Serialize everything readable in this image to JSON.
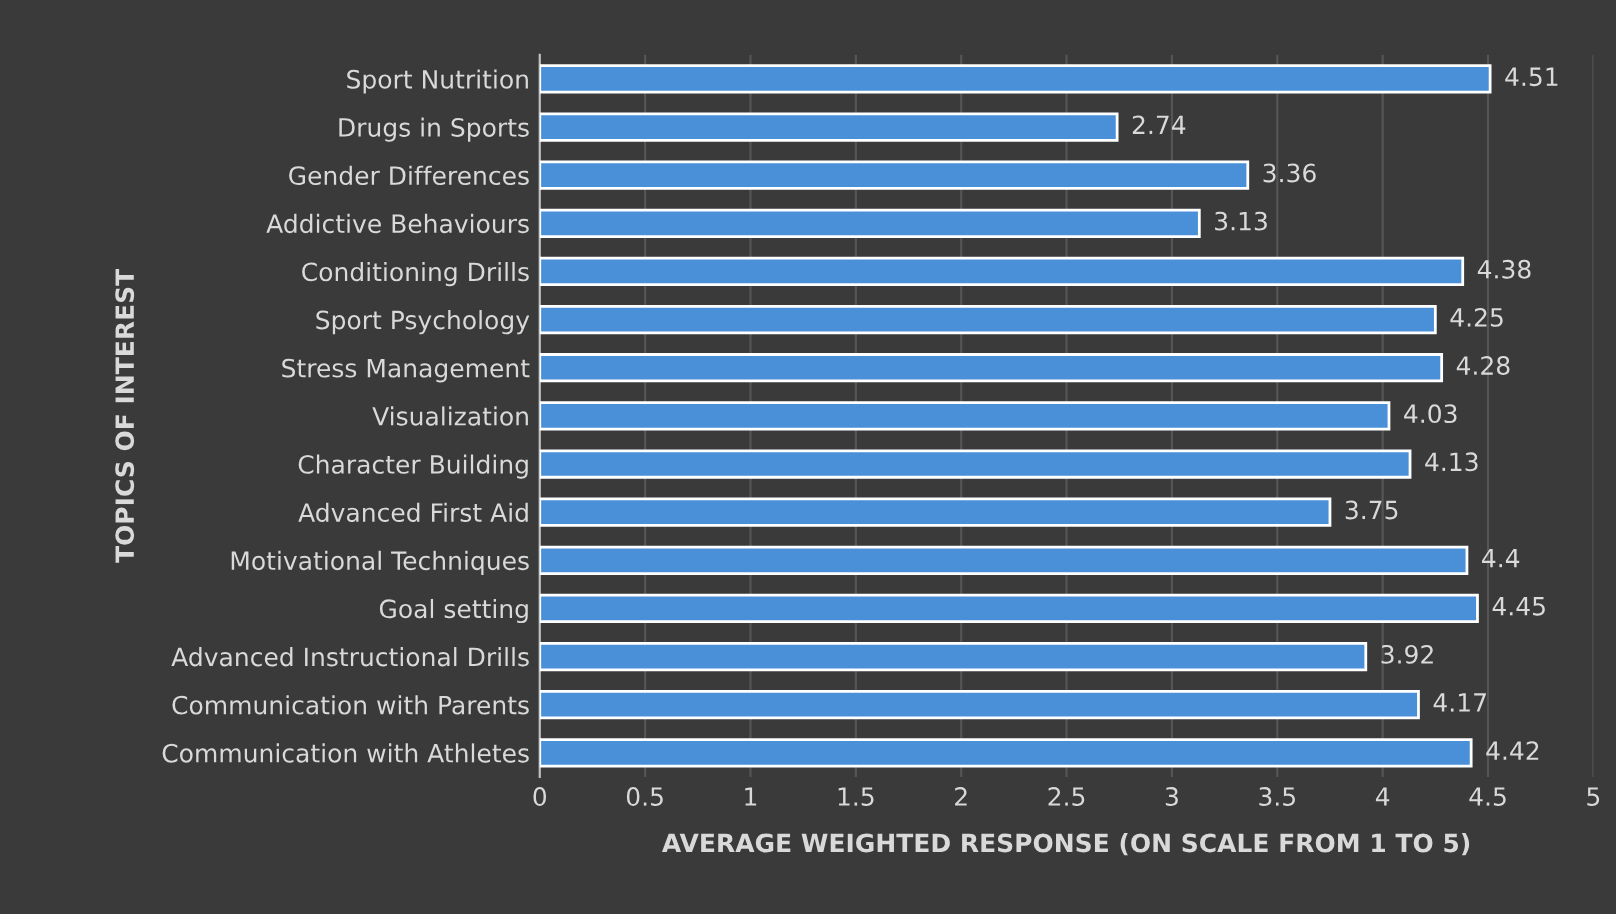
{
  "chart_data": {
    "type": "bar",
    "orientation": "horizontal",
    "xlabel": "AVERAGE WEIGHTED RESPONSE (ON SCALE FROM 1 TO 5)",
    "ylabel": "TOPICS OF INTEREST",
    "categories": [
      "Sport Nutrition",
      "Drugs in Sports",
      "Gender Differences",
      "Addictive Behaviours",
      "Conditioning Drills",
      "Sport Psychology",
      "Stress Management",
      "Visualization",
      "Character Building",
      "Advanced First Aid",
      "Motivational Techniques",
      "Goal setting",
      "Advanced Instructional Drills",
      "Communication with Parents",
      "Communication with Athletes"
    ],
    "values": [
      4.51,
      2.74,
      3.36,
      3.13,
      4.38,
      4.25,
      4.28,
      4.03,
      4.13,
      3.75,
      4.4,
      4.45,
      3.92,
      4.17,
      4.42
    ],
    "color": "#4a90d9",
    "xlim": [
      0,
      5
    ],
    "xticks": [
      0,
      0.5,
      1,
      1.5,
      2,
      2.5,
      3,
      3.5,
      4,
      4.5,
      5
    ],
    "grid": "x",
    "data_labels": true
  }
}
